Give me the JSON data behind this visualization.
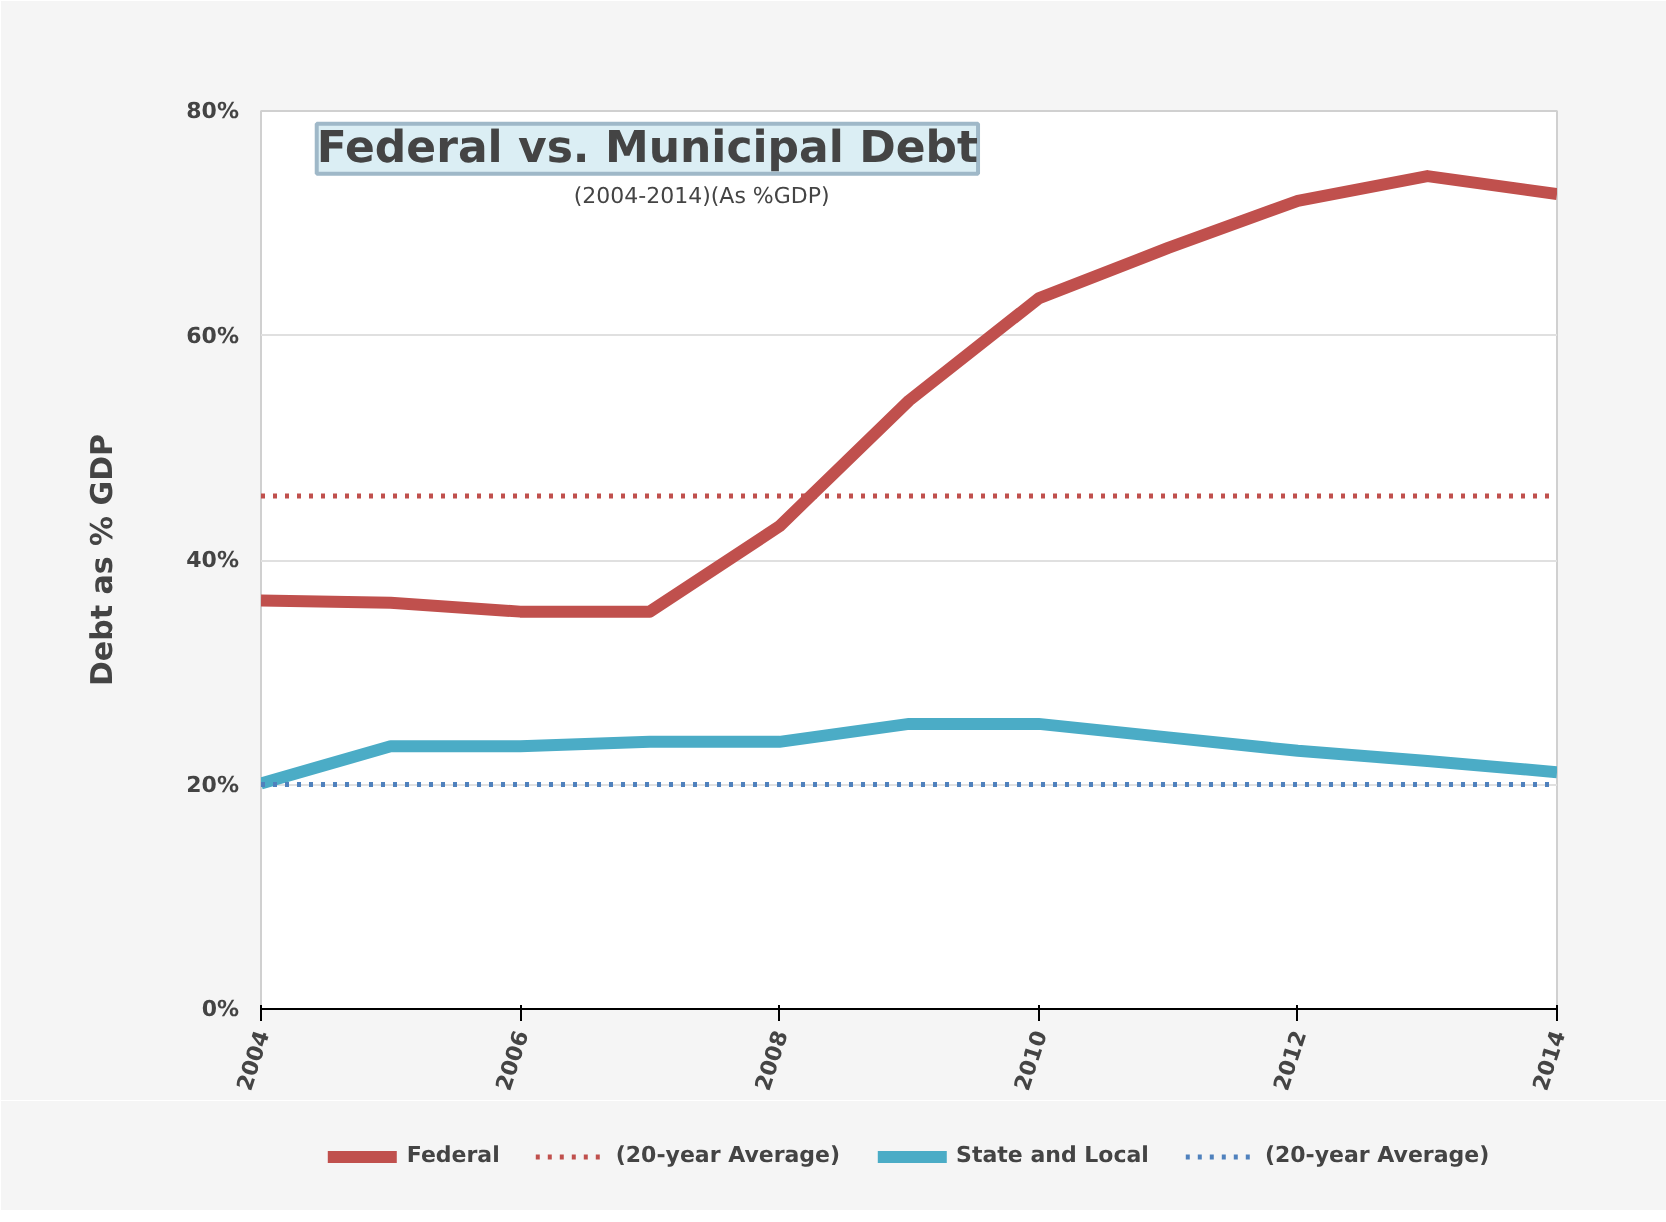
{
  "chart_data": {
    "type": "line",
    "title": "Federal vs. Municipal Debt",
    "subtitle": "(2004-2014)(As %GDP)",
    "ylabel": "Debt as % GDP",
    "x": [
      2004,
      2005,
      2006,
      2007,
      2008,
      2009,
      2010,
      2011,
      2012,
      2013,
      2014
    ],
    "series": [
      {
        "name": "Federal",
        "color": "#c0504d",
        "line_style": "solid",
        "values": [
          36.4,
          36.2,
          35.4,
          35.4,
          43,
          54.2,
          63.3,
          67.8,
          72,
          74.2,
          72.6
        ]
      },
      {
        "name": "(20-year Average)",
        "color": "#c0504d",
        "line_style": "dotted",
        "values": [
          45.7,
          45.7,
          45.7,
          45.7,
          45.7,
          45.7,
          45.7,
          45.7,
          45.7,
          45.7,
          45.7
        ]
      },
      {
        "name": "State and Local",
        "color": "#4bacc6",
        "line_style": "solid",
        "values": [
          20.1,
          23.4,
          23.4,
          23.8,
          23.8,
          25.4,
          25.4,
          24.2,
          23,
          22.1,
          21.1
        ]
      },
      {
        "name": "(20-year Average)",
        "color": "#4f81bd",
        "line_style": "dotted",
        "values": [
          20,
          20,
          20,
          20,
          20,
          20,
          20,
          20,
          20,
          20,
          20
        ]
      }
    ],
    "xlim": [
      2004,
      2014
    ],
    "xticks": [
      2004,
      2006,
      2008,
      2010,
      2012,
      2014
    ],
    "ylim": [
      0,
      80
    ],
    "yticks": [
      {
        "value": 0,
        "label": "0%"
      },
      {
        "value": 20,
        "label": "20%"
      },
      {
        "value": 40,
        "label": "40%"
      },
      {
        "value": 60,
        "label": "60%"
      },
      {
        "value": 80,
        "label": "80%"
      }
    ],
    "grid": "y",
    "legend": "bottom",
    "marker": "none"
  }
}
